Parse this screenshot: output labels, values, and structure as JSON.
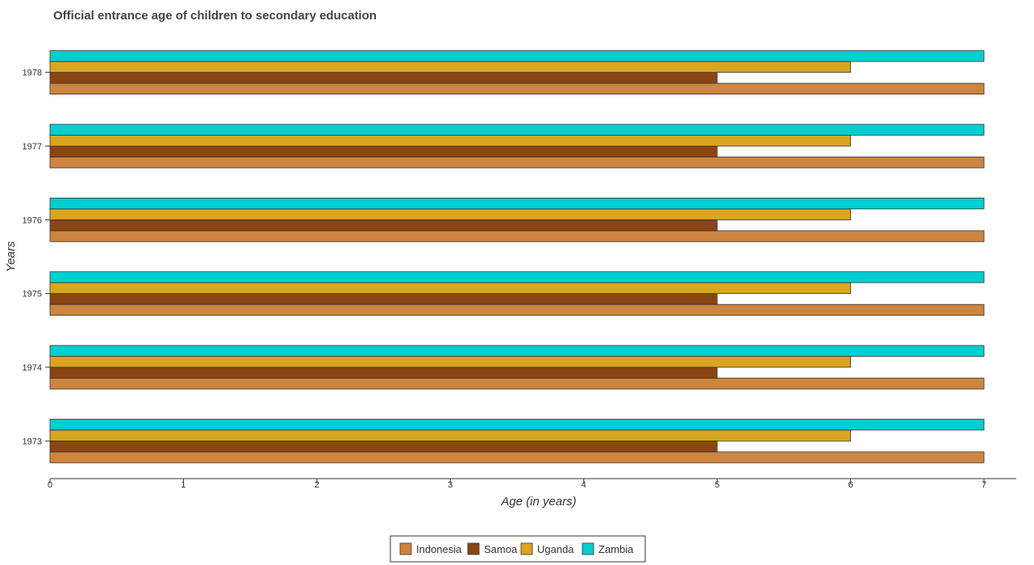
{
  "chart_data": {
    "type": "bar",
    "orientation": "horizontal",
    "title": "Official entrance age of children to secondary education",
    "xlabel": "Age (in years)",
    "ylabel": "Years",
    "categories": [
      "1973",
      "1974",
      "1975",
      "1976",
      "1977",
      "1978"
    ],
    "xlim": [
      0,
      7
    ],
    "x_ticks": [
      "0",
      "1",
      "2",
      "3",
      "4",
      "5",
      "6",
      "7"
    ],
    "grid": false,
    "legend_position": "bottom-center",
    "series": [
      {
        "name": "Indonesia",
        "color": "#cd853f",
        "values": [
          7,
          7,
          7,
          7,
          7,
          7
        ]
      },
      {
        "name": "Samoa",
        "color": "#8b4513",
        "values": [
          5,
          5,
          5,
          5,
          5,
          5
        ]
      },
      {
        "name": "Uganda",
        "color": "#daa520",
        "values": [
          6,
          6,
          6,
          6,
          6,
          6
        ]
      },
      {
        "name": "Zambia",
        "color": "#00ced1",
        "values": [
          7,
          7,
          7,
          7,
          7,
          7
        ]
      }
    ]
  }
}
